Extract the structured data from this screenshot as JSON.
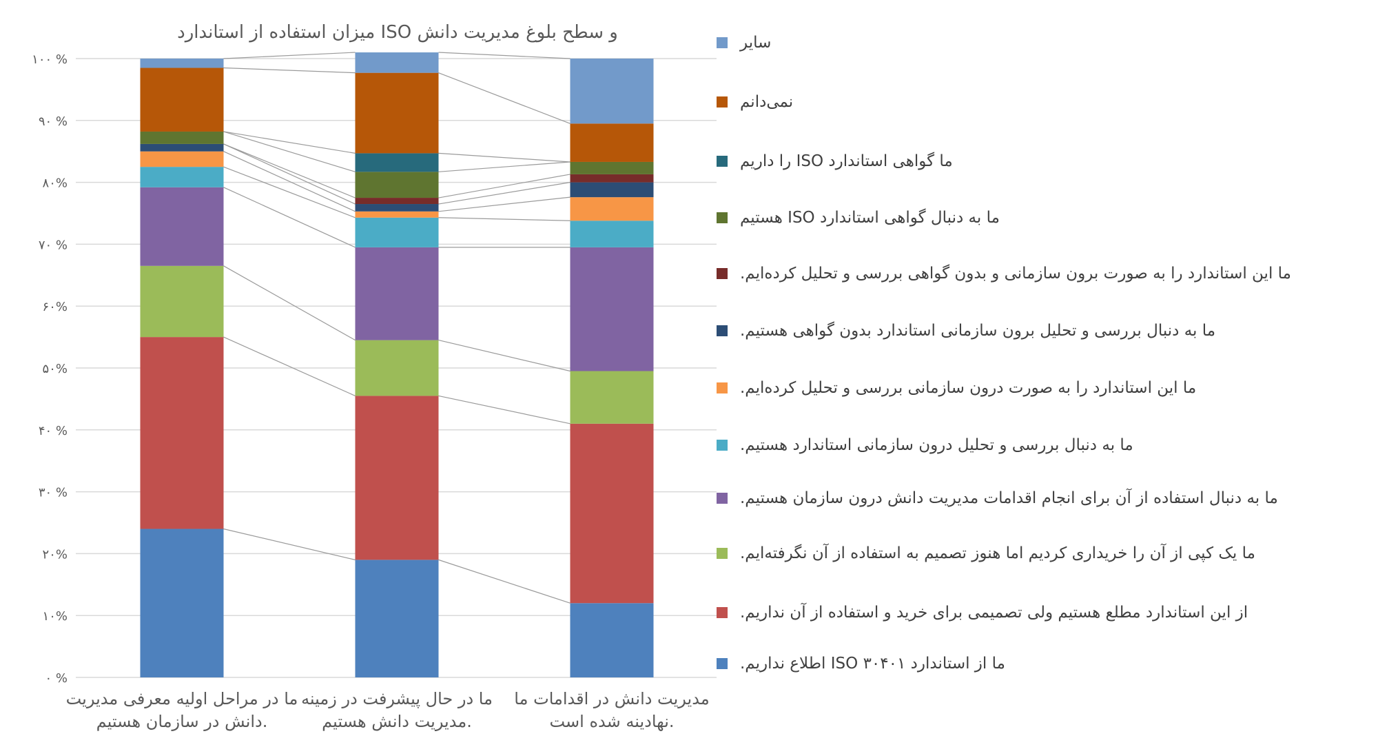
{
  "chart_data": {
    "type": "bar",
    "stacked": true,
    "percent": true,
    "title": "میزان استفاده از استاندارد ISO و سطح بلوغ مدیریت دانش",
    "xlabel": "",
    "ylabel": "",
    "ylim": [
      0,
      100
    ],
    "y_ticks": [
      "۰ %",
      "۱۰%",
      "۲۰%",
      "۳۰ %",
      "۴۰ %",
      "۵۰%",
      "۶۰%",
      "۷۰ %",
      "۸۰%",
      "۹۰ %",
      "۱۰۰ %"
    ],
    "grid": true,
    "legend_position": "right",
    "categories": [
      [
        "ما در مراحل اولیه معرفی مدیریت",
        "دانش در سازمان هستیم."
      ],
      [
        "ما در حال پیشرفت در زمینه",
        "مدیریت دانش هستیم."
      ],
      [
        "مدیریت دانش در اقدامات ما",
        "نهادینه شده است."
      ]
    ],
    "series": [
      {
        "name": "ما از استاندارد ISO ۳۰۴۰۱ اطلاع نداریم.",
        "color": "#4e81bd",
        "values": [
          24,
          19,
          12
        ]
      },
      {
        "name": "از این استاندارد مطلع هستیم ولی تصمیمی برای خرید و استفاده از آن نداریم.",
        "color": "#c0504d",
        "values": [
          31,
          26.5,
          29
        ]
      },
      {
        "name": "ما یک کپی از آن را خریداری کردیم اما هنوز تصمیم به استفاده از آن نگرفته‌ایم.",
        "color": "#9bbb59",
        "values": [
          11.5,
          9,
          8.5
        ]
      },
      {
        "name": "ما به دنبال استفاده از آن برای انجام اقدامات مدیریت دانش درون سازمان هستیم.",
        "color": "#8064a2",
        "values": [
          12.7,
          15,
          20
        ]
      },
      {
        "name": "ما به دنبال بررسی و تحلیل درون سازمانی استاندارد هستیم.",
        "color": "#4bacc6",
        "values": [
          3.3,
          4.8,
          4.3
        ]
      },
      {
        "name": "ما این استاندارد را به صورت درون سازمانی بررسی و تحلیل کرده‌ایم.",
        "color": "#f79646",
        "values": [
          2.5,
          1,
          3.8
        ]
      },
      {
        "name": "ما به دنبال بررسی و تحلیل برون سازمانی استاندارد بدون گواهی هستیم.",
        "color": "#2c4d75",
        "values": [
          1.2,
          1.2,
          2.4
        ]
      },
      {
        "name": "ما این استاندارد را به صورت برون سازمانی و بدون گواهی بررسی و تحلیل کرده‌ایم.",
        "color": "#772c2a",
        "values": [
          0,
          1,
          1.3
        ]
      },
      {
        "name": "ما به دنبال گواهی استاندارد ISO هستیم",
        "color": "#5f7530",
        "values": [
          2,
          4.2,
          2
        ]
      },
      {
        "name": "ما گواهی استاندارد ISO را داریم",
        "color": "#276a7c",
        "values": [
          0,
          3,
          0
        ]
      },
      {
        "name": "نمی‌دانم",
        "color": "#b65708",
        "values": [
          10.3,
          13,
          6.2
        ]
      },
      {
        "name": "سایر",
        "color": "#729aca",
        "values": [
          1.5,
          3.3,
          10.5
        ]
      }
    ]
  }
}
